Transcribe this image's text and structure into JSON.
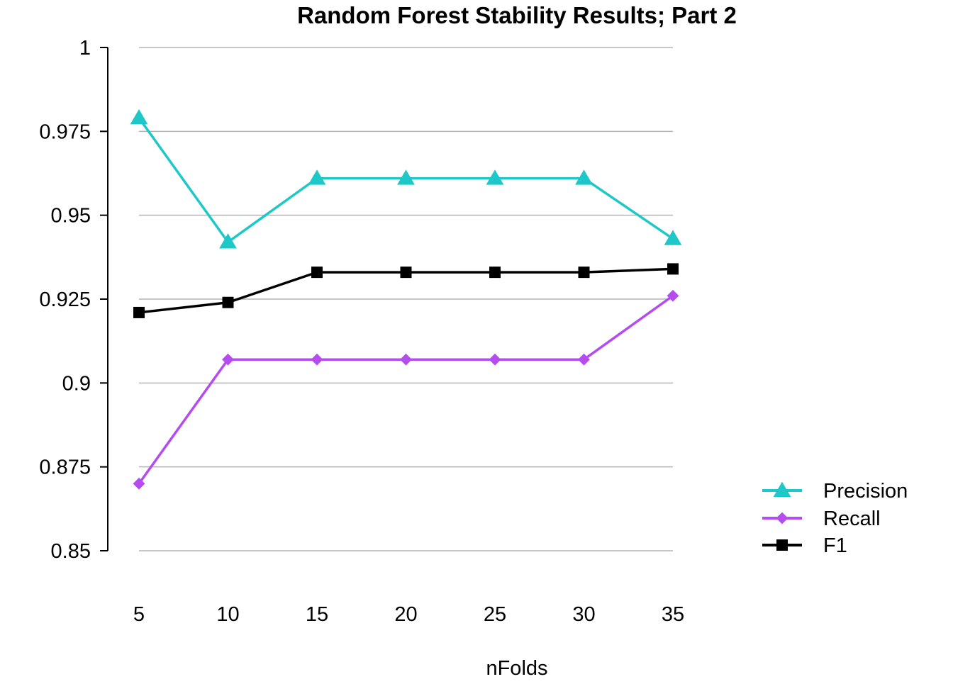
{
  "chart_data": {
    "type": "line",
    "title": "Random Forest Stability Results; Part 2",
    "xlabel": "nFolds",
    "ylabel": "",
    "x": [
      5,
      10,
      15,
      20,
      25,
      30,
      35
    ],
    "x_tick_labels": [
      "5",
      "10",
      "15",
      "20",
      "25",
      "30",
      "35"
    ],
    "ylim": [
      0.85,
      1
    ],
    "y_ticks": [
      0.85,
      0.875,
      0.9,
      0.925,
      0.95,
      0.975,
      1
    ],
    "y_tick_labels": [
      "0.85",
      "0.875",
      "0.9",
      "0.925",
      "0.95",
      "0.975",
      "1"
    ],
    "grid": "horizontal",
    "legend_position": "right",
    "series": [
      {
        "name": "Precision",
        "color": "#1fc8c8",
        "marker": "triangle",
        "values": [
          0.979,
          0.942,
          0.961,
          0.961,
          0.961,
          0.961,
          0.943
        ]
      },
      {
        "name": "Recall",
        "color": "#b44cf0",
        "marker": "diamond",
        "values": [
          0.87,
          0.907,
          0.907,
          0.907,
          0.907,
          0.907,
          0.926
        ]
      },
      {
        "name": "F1",
        "color": "#000000",
        "marker": "square",
        "values": [
          0.921,
          0.924,
          0.933,
          0.933,
          0.933,
          0.933,
          0.934
        ]
      }
    ]
  }
}
